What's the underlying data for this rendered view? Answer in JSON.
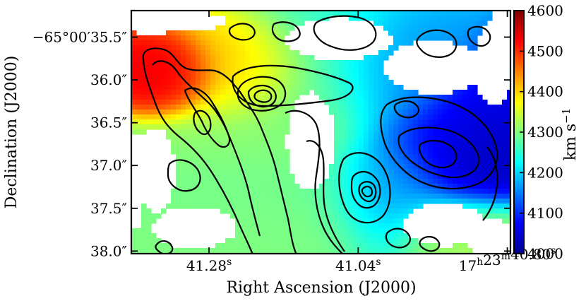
{
  "chart_data": {
    "type": "heatmap",
    "title": "",
    "xlabel": "Right Ascension (J2000)",
    "ylabel": "Declination (J2000)",
    "x_ticks": [
      {
        "label": "41.28",
        "sup": "s",
        "value": 41.28
      },
      {
        "label": "41.04",
        "sup": "s",
        "value": 41.04
      },
      {
        "label": "17",
        "sup": "h",
        "label2": "23",
        "sup2": "m",
        "label3": "40.80",
        "sup3": "s",
        "value": 40.8
      }
    ],
    "xlim": [
      41.405,
      40.795
    ],
    "y_ticks": [
      {
        "label": "−65°00′35.5″",
        "value": 35.5
      },
      {
        "label": "36.0″",
        "value": 36.0
      },
      {
        "label": "36.5″",
        "value": 36.5
      },
      {
        "label": "37.0″",
        "value": 37.0
      },
      {
        "label": "37.5″",
        "value": 37.5
      },
      {
        "label": "38.0″",
        "value": 38.0
      }
    ],
    "ylim": [
      35.19,
      38.03
    ],
    "colorbar": {
      "label": "km s",
      "label_sup": "−1",
      "min": 4000,
      "max": 4600,
      "ticks": [
        4000,
        4100,
        4200,
        4300,
        4400,
        4500,
        4600
      ],
      "colormap": "jet"
    },
    "velocity_blobs": [
      {
        "x": 41.335,
        "y": 35.95,
        "sx": 0.035,
        "sy": 0.18,
        "v": 4540
      },
      {
        "x": 41.22,
        "y": 35.95,
        "sx": 0.06,
        "sy": 0.25,
        "v": 4420
      },
      {
        "x": 41.15,
        "y": 36.4,
        "sx": 0.08,
        "sy": 0.4,
        "v": 4310
      },
      {
        "x": 41.08,
        "y": 36.0,
        "sx": 0.07,
        "sy": 0.35,
        "v": 4250
      },
      {
        "x": 41.1,
        "y": 37.3,
        "sx": 0.09,
        "sy": 0.4,
        "v": 4290
      },
      {
        "x": 40.99,
        "y": 36.0,
        "sx": 0.05,
        "sy": 0.3,
        "v": 4150
      },
      {
        "x": 40.9,
        "y": 36.7,
        "sx": 0.07,
        "sy": 0.35,
        "v": 4070
      },
      {
        "x": 40.85,
        "y": 36.9,
        "sx": 0.05,
        "sy": 0.3,
        "v": 4030
      },
      {
        "x": 41.0,
        "y": 37.3,
        "sx": 0.05,
        "sy": 0.35,
        "v": 4130
      },
      {
        "x": 41.16,
        "y": 37.8,
        "sx": 0.08,
        "sy": 0.3,
        "v": 4300
      },
      {
        "x": 40.88,
        "y": 37.8,
        "sx": 0.06,
        "sy": 0.25,
        "v": 4320
      }
    ],
    "contour_groups": [
      {
        "name": "left-envelope",
        "stroke": "#000000"
      },
      {
        "name": "left-peak-rings",
        "stroke": "#000000"
      },
      {
        "name": "lower-middle-peak-rings",
        "stroke": "#000000"
      },
      {
        "name": "right-lobe-rings",
        "stroke": "#000000"
      },
      {
        "name": "upper-fragments",
        "stroke": "#000000"
      }
    ],
    "grid": false,
    "legend": "none"
  }
}
